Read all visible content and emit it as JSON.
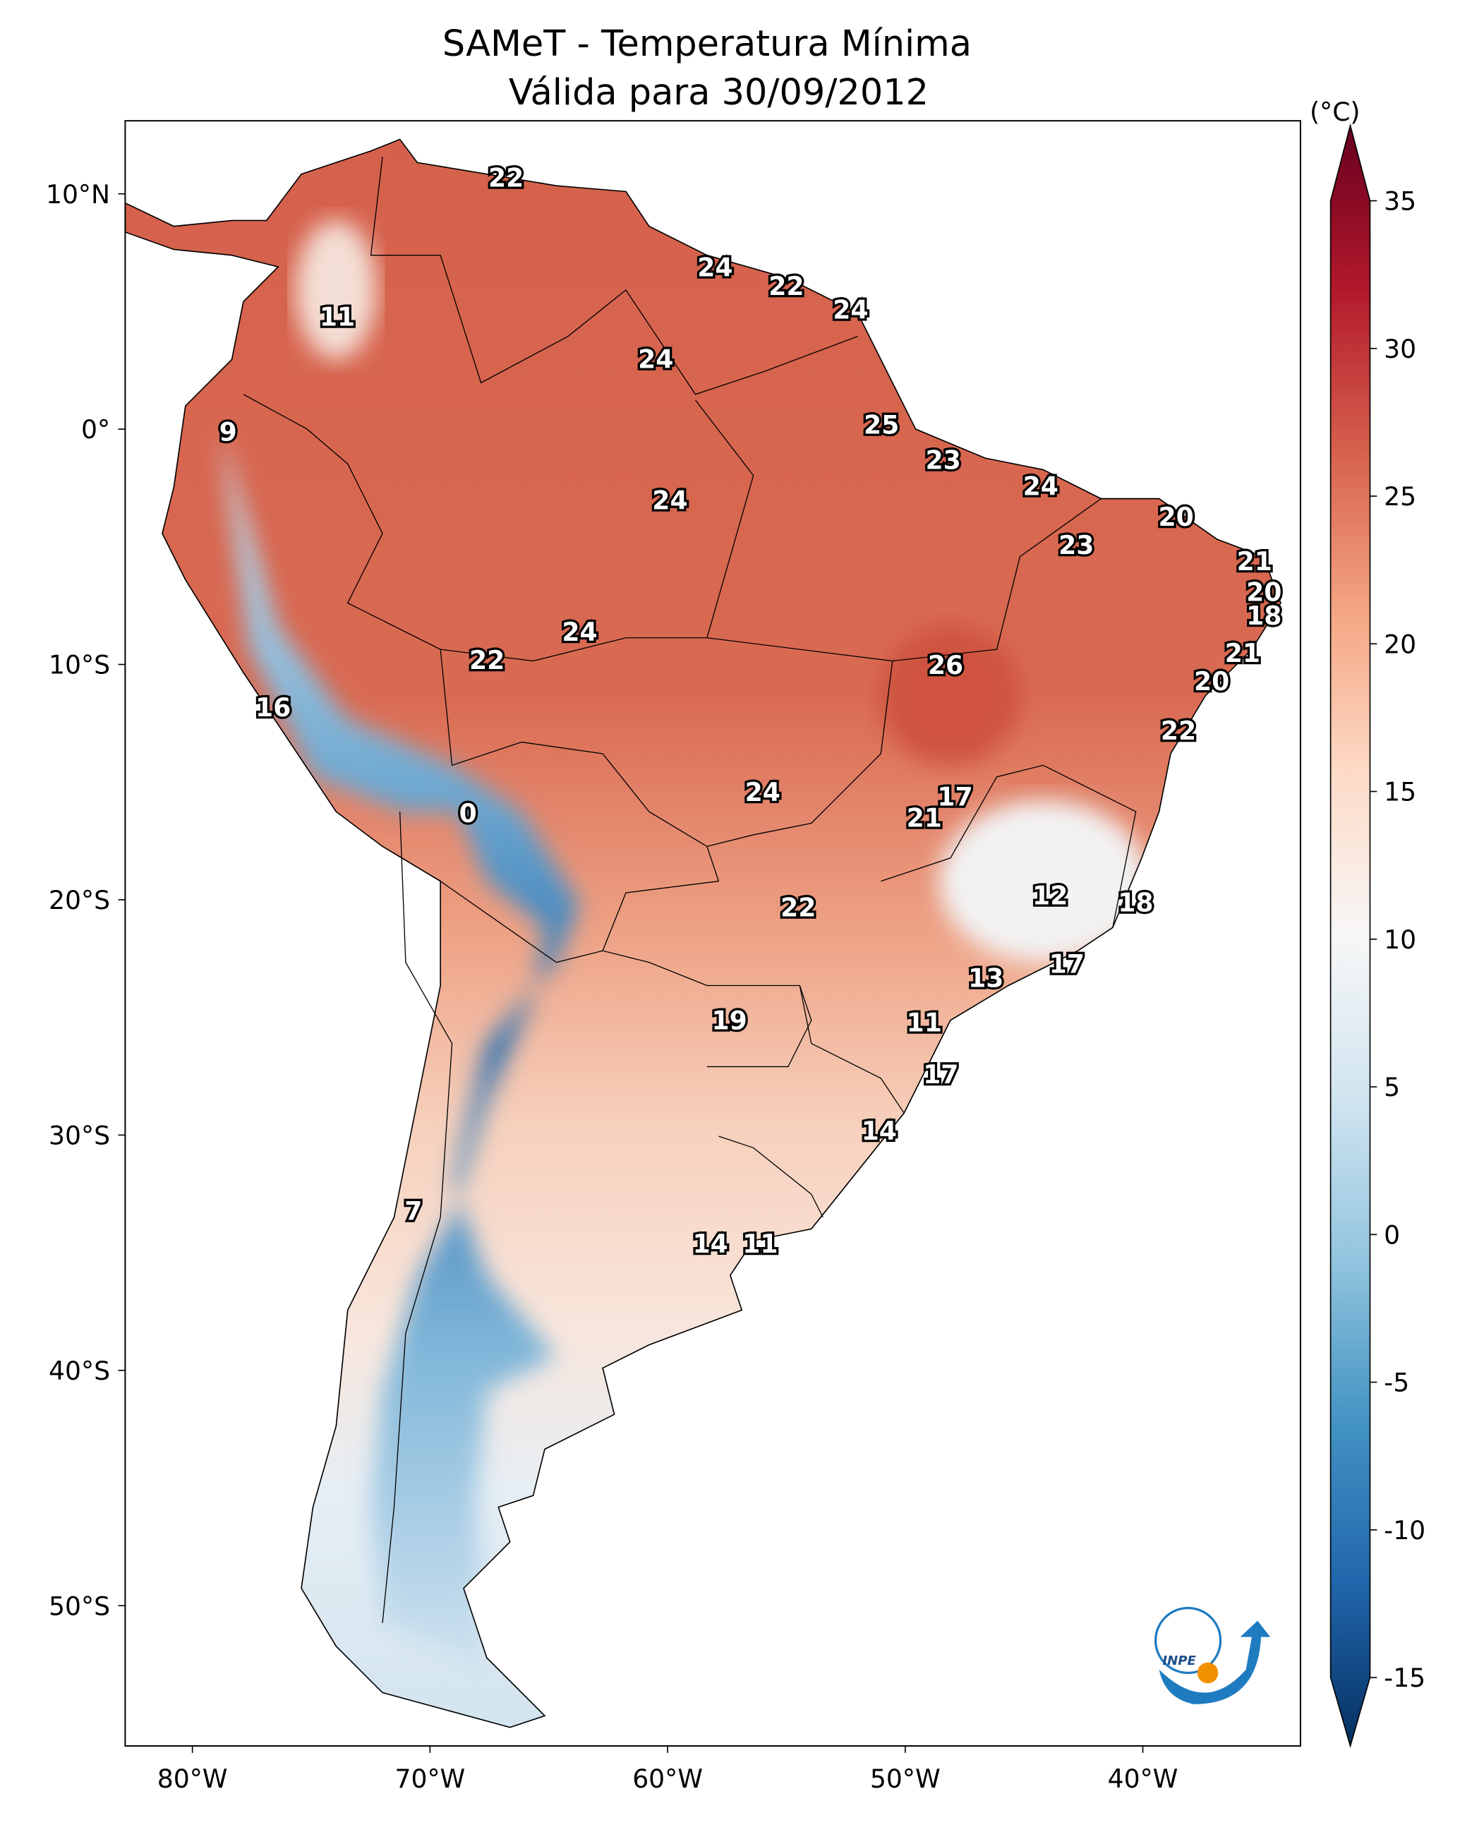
{
  "title": {
    "line1": "SAMeT - Temperatura Mínima",
    "line2": "Válida para 30/09/2012"
  },
  "colorbar": {
    "unit_label": "(°C)",
    "ticks": [
      35,
      30,
      25,
      20,
      15,
      10,
      5,
      0,
      -5,
      -10,
      -15
    ],
    "range": [
      -15,
      35
    ],
    "extend": "both",
    "colormap": "RdBu_r",
    "colors": {
      "35": "#67001f",
      "30": "#b2182b",
      "25": "#d6604d",
      "20": "#f4a582",
      "15": "#fddbc7",
      "10": "#f7f7f7",
      "5": "#d1e5f0",
      "0": "#92c5de",
      "-5": "#4393c3",
      "-10": "#2166ac",
      "-15": "#053061"
    }
  },
  "axes": {
    "x_ticks": [
      {
        "lon": -80,
        "label": "80°W"
      },
      {
        "lon": -70,
        "label": "70°W"
      },
      {
        "lon": -60,
        "label": "60°W"
      },
      {
        "lon": -50,
        "label": "50°W"
      },
      {
        "lon": -40,
        "label": "40°W"
      }
    ],
    "y_ticks": [
      {
        "lat": 10,
        "label": "10°N"
      },
      {
        "lat": 0,
        "label": "0°"
      },
      {
        "lat": -10,
        "label": "10°S"
      },
      {
        "lat": -20,
        "label": "20°S"
      },
      {
        "lat": -30,
        "label": "30°S"
      },
      {
        "lat": -40,
        "label": "40°S"
      },
      {
        "lat": -50,
        "label": "50°S"
      }
    ]
  },
  "station_values": [
    {
      "v": "22",
      "lon": -66.8,
      "lat": 10.6
    },
    {
      "v": "11",
      "lon": -73.9,
      "lat": 4.7
    },
    {
      "v": "24",
      "lon": -58.0,
      "lat": 6.8
    },
    {
      "v": "22",
      "lon": -55.0,
      "lat": 6.0
    },
    {
      "v": "24",
      "lon": -52.3,
      "lat": 5.0
    },
    {
      "v": "24",
      "lon": -60.5,
      "lat": 2.9
    },
    {
      "v": "9",
      "lon": -78.5,
      "lat": -0.2
    },
    {
      "v": "25",
      "lon": -51.0,
      "lat": 0.1
    },
    {
      "v": "23",
      "lon": -48.4,
      "lat": -1.4
    },
    {
      "v": "24",
      "lon": -59.9,
      "lat": -3.1
    },
    {
      "v": "24",
      "lon": -44.3,
      "lat": -2.5
    },
    {
      "v": "20",
      "lon": -38.6,
      "lat": -3.8
    },
    {
      "v": "23",
      "lon": -42.8,
      "lat": -5.0
    },
    {
      "v": "21",
      "lon": -35.3,
      "lat": -5.7
    },
    {
      "v": "20",
      "lon": -34.9,
      "lat": -7.0
    },
    {
      "v": "18",
      "lon": -34.9,
      "lat": -8.0
    },
    {
      "v": "24",
      "lon": -63.7,
      "lat": -8.7
    },
    {
      "v": "21",
      "lon": -35.8,
      "lat": -9.6
    },
    {
      "v": "22",
      "lon": -67.6,
      "lat": -9.9
    },
    {
      "v": "26",
      "lon": -48.3,
      "lat": -10.1
    },
    {
      "v": "20",
      "lon": -37.1,
      "lat": -10.8
    },
    {
      "v": "16",
      "lon": -76.6,
      "lat": -11.9
    },
    {
      "v": "22",
      "lon": -38.5,
      "lat": -12.9
    },
    {
      "v": "24",
      "lon": -56.0,
      "lat": -15.5
    },
    {
      "v": "17",
      "lon": -47.9,
      "lat": -15.7
    },
    {
      "v": "0",
      "lon": -68.4,
      "lat": -16.4
    },
    {
      "v": "21",
      "lon": -49.2,
      "lat": -16.6
    },
    {
      "v": "12",
      "lon": -43.9,
      "lat": -19.9
    },
    {
      "v": "18",
      "lon": -40.3,
      "lat": -20.2
    },
    {
      "v": "22",
      "lon": -54.5,
      "lat": -20.4
    },
    {
      "v": "17",
      "lon": -43.2,
      "lat": -22.8
    },
    {
      "v": "13",
      "lon": -46.6,
      "lat": -23.4
    },
    {
      "v": "19",
      "lon": -57.4,
      "lat": -25.2
    },
    {
      "v": "11",
      "lon": -49.2,
      "lat": -25.3
    },
    {
      "v": "17",
      "lon": -48.5,
      "lat": -27.5
    },
    {
      "v": "14",
      "lon": -51.1,
      "lat": -29.9
    },
    {
      "v": "7",
      "lon": -70.7,
      "lat": -33.3
    },
    {
      "v": "14",
      "lon": -58.2,
      "lat": -34.7
    },
    {
      "v": "11",
      "lon": -56.1,
      "lat": -34.7
    }
  ],
  "logo": {
    "text": "INPE"
  }
}
